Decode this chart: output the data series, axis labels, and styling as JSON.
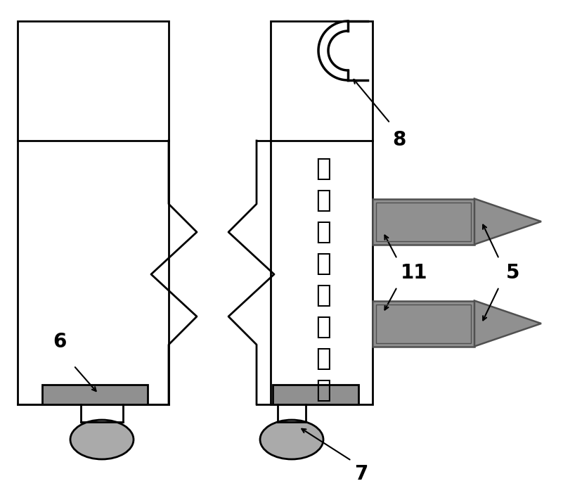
{
  "bg_color": "#ffffff",
  "line_color": "#000000",
  "probe_gray": "#909090",
  "probe_dark": "#505050",
  "wheel_gray": "#aaaaaa",
  "lw_main": 2.0,
  "lw_thick": 2.5,
  "figure_width": 8.01,
  "figure_height": 7.01,
  "label_8": "8",
  "label_6": "6",
  "label_7": "7",
  "label_11": "11",
  "label_5": "5",
  "chinese_chars": [
    "拖",
    "曳",
    "装",
    "置",
    "主",
    "体",
    "前",
    "端"
  ]
}
